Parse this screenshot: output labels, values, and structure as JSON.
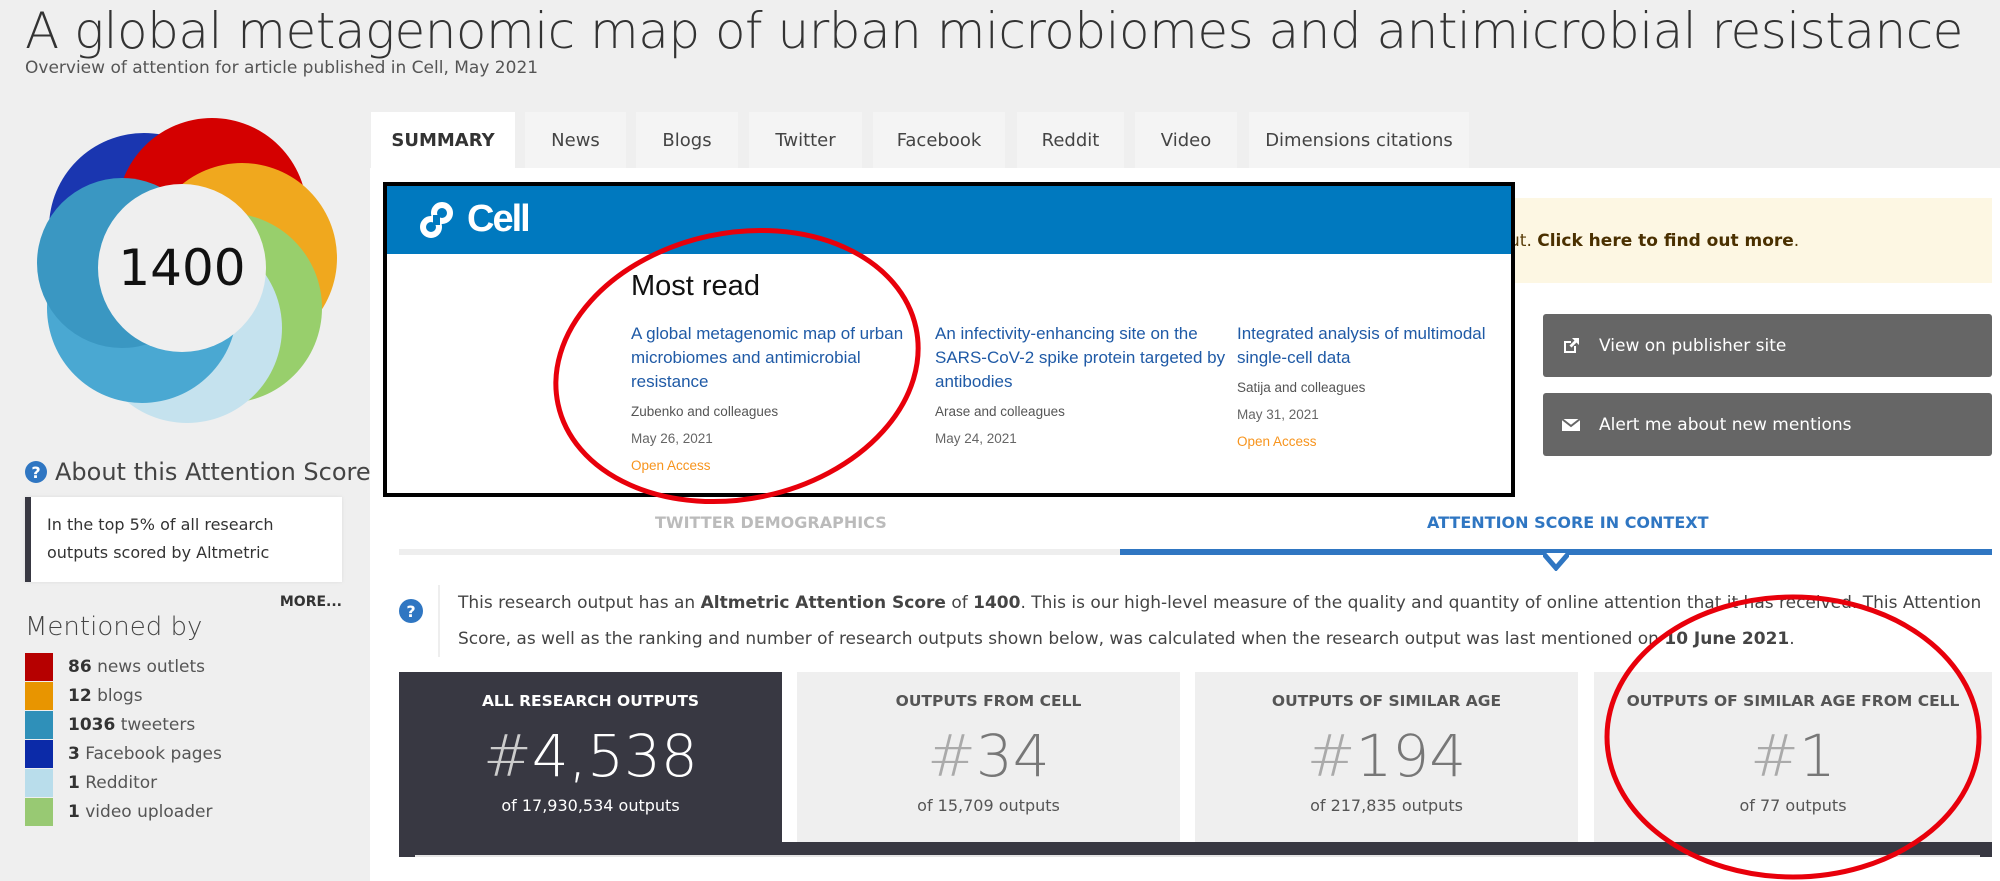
{
  "header": {
    "title": "A global metagenomic map of urban microbiomes and antimicrobial resistance",
    "subtitle": "Overview of attention for article published in Cell, May 2021"
  },
  "score": {
    "value": "1400",
    "colors": {
      "news": "#b60000",
      "blogs": "#e89500",
      "twitter": "#2f90b9",
      "facebook": "#0b2aa8",
      "reddit": "#b9ddeb",
      "video": "#98c973"
    }
  },
  "tabs": [
    {
      "label": "SUMMARY",
      "active": true
    },
    {
      "label": "News"
    },
    {
      "label": "Blogs"
    },
    {
      "label": "Twitter"
    },
    {
      "label": "Facebook"
    },
    {
      "label": "Reddit"
    },
    {
      "label": "Video"
    },
    {
      "label": "Dimensions citations"
    }
  ],
  "sidebar": {
    "about_title": "About this Attention Score",
    "top_text": "In the top 5% of all research outputs scored by Altmetric",
    "more_label": "MORE...",
    "mentioned_title": "Mentioned by",
    "mentions": [
      {
        "count": "86",
        "label": "news outlets",
        "color": "#b60000"
      },
      {
        "count": "12",
        "label": "blogs",
        "color": "#e89500"
      },
      {
        "count": "1036",
        "label": "tweeters",
        "color": "#2f90b9"
      },
      {
        "count": "3",
        "label": "Facebook pages",
        "color": "#0b2aa8"
      },
      {
        "count": "1",
        "label": "Redditor",
        "color": "#b9ddeb"
      },
      {
        "count": "1",
        "label": "video uploader",
        "color": "#98c973"
      }
    ]
  },
  "cell_overlay": {
    "logo": "Cell",
    "heading": "Most read",
    "articles": [
      {
        "title": "A global metagenomic map of urban microbiomes and antimicrobial resistance",
        "authors": "Zubenko and colleagues",
        "date": "May 26, 2021",
        "access": "Open Access"
      },
      {
        "title": "An infectivity-enhancing site on the SARS-CoV-2 spike protein targeted by antibodies",
        "authors": "Arase and colleagues",
        "date": "May 24, 2021",
        "access": ""
      },
      {
        "title": "Integrated analysis of multimodal single-cell data",
        "authors": "Satija and colleagues",
        "date": "May 31, 2021",
        "access": "Open Access"
      }
    ]
  },
  "notice": {
    "prefix": "ut. ",
    "link": "Click here to find out more",
    "suffix": "."
  },
  "actions": {
    "publisher": "View on publisher site",
    "alert": "Alert me about new mentions"
  },
  "subtabs": {
    "twitter": "TWITTER DEMOGRAPHICS",
    "context": "ATTENTION SCORE IN CONTEXT",
    "active": "context"
  },
  "context": {
    "t1": "This research output has an ",
    "b1": "Altmetric Attention Score",
    "t2": " of ",
    "b2": "1400",
    "t3": ". This is our high-level measure of the quality and quantity of online attention that it has received. This Attention Score, as well as the ranking and number of research outputs shown below, was calculated when the research output was last mentioned on ",
    "b3": "10 June 2021",
    "t4": "."
  },
  "cards": [
    {
      "heading": "ALL RESEARCH OUTPUTS",
      "rank": "4,538",
      "total": "of 17,930,534 outputs"
    },
    {
      "heading": "OUTPUTS FROM CELL",
      "rank": "34",
      "total": "of 15,709 outputs"
    },
    {
      "heading": "OUTPUTS OF SIMILAR AGE",
      "rank": "194",
      "total": "of 217,835 outputs"
    },
    {
      "heading": "OUTPUTS OF SIMILAR AGE FROM CELL",
      "rank": "1",
      "total": "of 77 outputs"
    }
  ],
  "annotation_color": "#e8000b"
}
